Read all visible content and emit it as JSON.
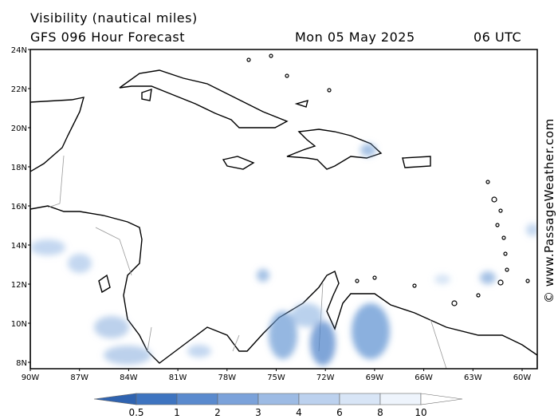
{
  "header": {
    "title": "Visibility (nautical miles)",
    "model": "GFS 096 Hour Forecast",
    "date": "Mon 05 May 2025",
    "time": "06 UTC"
  },
  "map": {
    "lat_labels": [
      "24N",
      "22N",
      "20N",
      "18N",
      "16N",
      "14N",
      "12N",
      "10N",
      "8N"
    ],
    "lon_labels": [
      "90W",
      "87W",
      "84W",
      "81W",
      "78W",
      "75W",
      "72W",
      "69W",
      "66W",
      "63W",
      "60W"
    ]
  },
  "legend": {
    "labels": [
      "0.5",
      "1",
      "2",
      "3",
      "4",
      "6",
      "8",
      "10"
    ]
  },
  "credit": "© www.PassageWeather.com"
}
